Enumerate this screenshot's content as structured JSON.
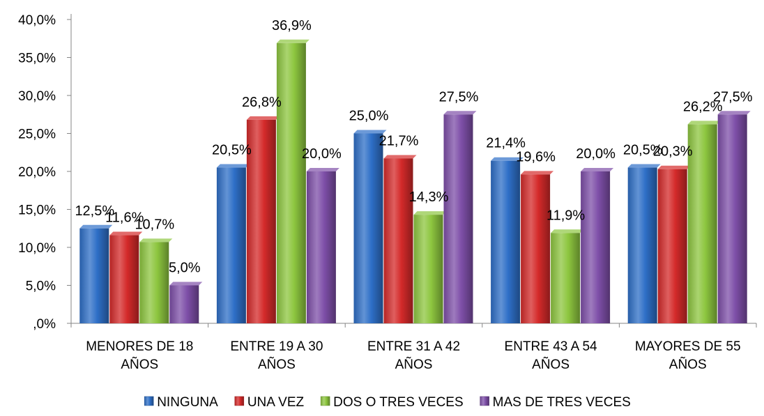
{
  "chart_data": {
    "type": "bar",
    "categories": [
      [
        "MENORES DE 18",
        "AÑOS"
      ],
      [
        "ENTRE 19 A 30",
        "AÑOS"
      ],
      [
        "ENTRE 31 A 42",
        "AÑOS"
      ],
      [
        "ENTRE 43 A 54",
        "AÑOS"
      ],
      [
        "MAYORES DE 55",
        "AÑOS"
      ]
    ],
    "series": [
      {
        "name": "NINGUNA",
        "color": "#2E6FC7",
        "values": [
          12.5,
          20.5,
          25.0,
          21.4,
          20.5
        ],
        "labels": [
          "12,5%",
          "20,5%",
          "25,0%",
          "21,4%",
          "20,5%"
        ]
      },
      {
        "name": "UNA VEZ",
        "color": "#D42A2A",
        "values": [
          11.6,
          26.8,
          21.7,
          19.6,
          20.3
        ],
        "labels": [
          "11,6%",
          "26,8%",
          "21,7%",
          "19,6%",
          "20,3%"
        ]
      },
      {
        "name": "DOS O TRES VECES",
        "color": "#8DC63F",
        "values": [
          10.7,
          36.9,
          14.3,
          11.9,
          26.2
        ],
        "labels": [
          "10,7%",
          "36,9%",
          "14,3%",
          "11,9%",
          "26,2%"
        ]
      },
      {
        "name": "MAS DE TRES VECES",
        "color": "#7E4FA8",
        "values": [
          5.0,
          20.0,
          27.5,
          20.0,
          27.5
        ],
        "labels": [
          "5,0%",
          "20,0%",
          "27,5%",
          "20,0%",
          "27,5%"
        ]
      }
    ],
    "yticks": [
      ",0%",
      "5,0%",
      "10,0%",
      "15,0%",
      "20,0%",
      "25,0%",
      "30,0%",
      "35,0%",
      "40,0%"
    ],
    "ylim": [
      0,
      40
    ],
    "grid": false,
    "legend_position": "bottom"
  }
}
